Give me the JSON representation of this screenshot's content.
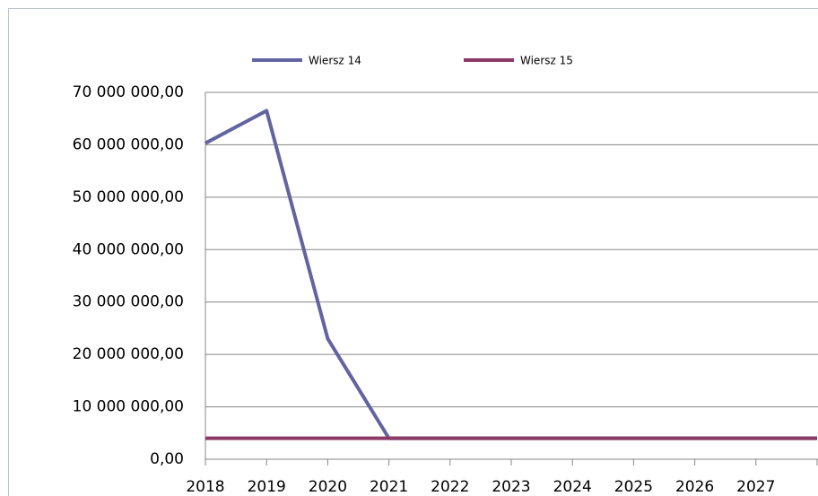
{
  "chart_data": {
    "type": "line",
    "categories": [
      "2018",
      "2019",
      "2020",
      "2021",
      "2022",
      "2023",
      "2024",
      "2025",
      "2026",
      "2027",
      null
    ],
    "series": [
      {
        "name": "Wiersz 14",
        "color": "#6264a0",
        "values": [
          60300000,
          66500000,
          23000000,
          4000000,
          4000000,
          4000000,
          4000000,
          4000000,
          4000000,
          4000000,
          4000000
        ]
      },
      {
        "name": "Wiersz 15",
        "color": "#8b3a66",
        "values": [
          4000000,
          4000000,
          4000000,
          4000000,
          4000000,
          4000000,
          4000000,
          4000000,
          4000000,
          4000000,
          4000000
        ]
      }
    ],
    "ylim": [
      0,
      70000000
    ],
    "yticks": [
      {
        "value": 0,
        "label": "0,00"
      },
      {
        "value": 10000000,
        "label": "10 000 000,00"
      },
      {
        "value": 20000000,
        "label": "20 000 000,00"
      },
      {
        "value": 30000000,
        "label": "30 000 000,00"
      },
      {
        "value": 40000000,
        "label": "40 000 000,00"
      },
      {
        "value": 50000000,
        "label": "50 000 000,00"
      },
      {
        "value": 60000000,
        "label": "60 000 000,00"
      },
      {
        "value": 70000000,
        "label": "70 000 000,00"
      }
    ],
    "grid": true,
    "legend": "top"
  }
}
